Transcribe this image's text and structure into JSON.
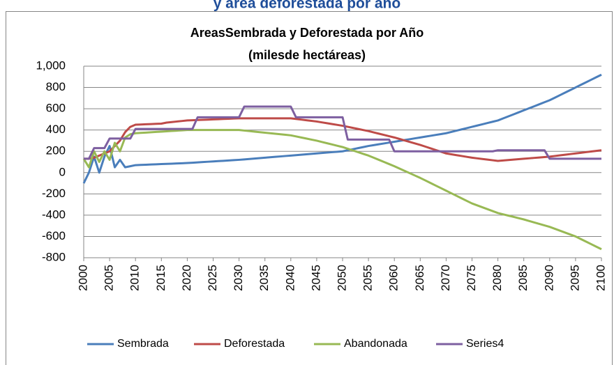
{
  "header": {
    "title": "y área deforestada por año"
  },
  "chart_data": {
    "type": "line",
    "title": "AreasSembrada y Deforestada por Año",
    "subtitle": "(milesde hectáreas)",
    "x": [
      2000,
      2001,
      2002,
      2003,
      2004,
      2005,
      2006,
      2007,
      2008,
      2009,
      2010,
      2011,
      2012,
      2013,
      2014,
      2015,
      2016,
      2017,
      2018,
      2019,
      2020,
      2021,
      2022,
      2023,
      2024,
      2025,
      2026,
      2027,
      2028,
      2029,
      2030,
      2031,
      2032,
      2033,
      2034,
      2035,
      2036,
      2037,
      2038,
      2039,
      2040,
      2041,
      2042,
      2043,
      2044,
      2045,
      2046,
      2047,
      2048,
      2049,
      2050,
      2051,
      2052,
      2053,
      2054,
      2055,
      2056,
      2057,
      2058,
      2059,
      2060,
      2061,
      2062,
      2063,
      2064,
      2065,
      2066,
      2067,
      2068,
      2069,
      2070,
      2071,
      2072,
      2073,
      2074,
      2075,
      2076,
      2077,
      2078,
      2079,
      2080,
      2081,
      2082,
      2083,
      2084,
      2085,
      2086,
      2087,
      2088,
      2089,
      2090,
      2091,
      2092,
      2093,
      2094,
      2095,
      2096,
      2097,
      2098,
      2099,
      2100
    ],
    "xlim": [
      2000,
      2100
    ],
    "xticks": [
      2000,
      2005,
      2010,
      2015,
      2020,
      2025,
      2030,
      2035,
      2040,
      2045,
      2050,
      2055,
      2060,
      2065,
      2070,
      2075,
      2080,
      2085,
      2090,
      2095,
      2100
    ],
    "ylim": [
      -800,
      1000
    ],
    "yticks": [
      -800,
      -600,
      -400,
      -200,
      0,
      200,
      400,
      600,
      800,
      {
        "value": 1000,
        "label": "1,000"
      }
    ],
    "grid": true,
    "legend": "bottom",
    "series": [
      {
        "name": "Sembrada",
        "color": "#4a7ebb",
        "values": [
          -100,
          0,
          150,
          0,
          150,
          250,
          50,
          120,
          50,
          60,
          70,
          72,
          74,
          76,
          78,
          80,
          82,
          84,
          86,
          88,
          90,
          93,
          96,
          99,
          102,
          105,
          108,
          111,
          114,
          117,
          120,
          124,
          128,
          132,
          136,
          140,
          144,
          148,
          152,
          156,
          160,
          164,
          168,
          172,
          176,
          180,
          184,
          188,
          192,
          196,
          200,
          210,
          220,
          230,
          240,
          250,
          258,
          266,
          274,
          282,
          290,
          298,
          306,
          314,
          322,
          330,
          338,
          346,
          354,
          362,
          370,
          382,
          394,
          406,
          418,
          430,
          442,
          454,
          466,
          478,
          490,
          509,
          528,
          547,
          566,
          585,
          604,
          623,
          642,
          661,
          680,
          704,
          728,
          752,
          776,
          800,
          824,
          848,
          872,
          896,
          920
        ]
      },
      {
        "name": "Deforestada",
        "color": "#be4b48",
        "values": [
          130,
          130,
          140,
          160,
          180,
          200,
          250,
          300,
          380,
          430,
          450,
          452,
          454,
          456,
          458,
          460,
          470,
          475,
          480,
          485,
          490,
          492,
          494,
          496,
          498,
          500,
          502,
          504,
          506,
          508,
          510,
          510,
          510,
          510,
          510,
          510,
          510,
          510,
          510,
          510,
          510,
          504,
          498,
          492,
          486,
          480,
          472,
          464,
          456,
          448,
          440,
          430,
          420,
          410,
          400,
          390,
          378,
          366,
          354,
          342,
          330,
          316,
          302,
          288,
          274,
          260,
          244,
          228,
          212,
          196,
          180,
          172,
          164,
          156,
          148,
          140,
          134,
          128,
          122,
          116,
          110,
          114,
          118,
          122,
          126,
          130,
          134,
          138,
          142,
          146,
          150,
          156,
          162,
          168,
          174,
          180,
          186,
          192,
          198,
          204,
          210
        ]
      },
      {
        "name": "Abandonada",
        "color": "#98b954",
        "values": [
          130,
          50,
          200,
          100,
          200,
          120,
          280,
          200,
          330,
          360,
          370,
          373,
          376,
          379,
          382,
          385,
          388,
          391,
          394,
          397,
          400,
          400,
          400,
          400,
          400,
          400,
          400,
          400,
          400,
          400,
          400,
          395,
          390,
          385,
          380,
          375,
          370,
          365,
          360,
          355,
          350,
          340,
          330,
          320,
          310,
          300,
          288,
          276,
          264,
          252,
          240,
          224,
          208,
          192,
          176,
          160,
          140,
          120,
          100,
          80,
          60,
          38,
          16,
          -6,
          -28,
          -50,
          -74,
          -98,
          -122,
          -146,
          -170,
          -194,
          -218,
          -242,
          -266,
          -290,
          -308,
          -326,
          -344,
          -362,
          -380,
          -392,
          -404,
          -416,
          -428,
          -440,
          -454,
          -468,
          -482,
          -496,
          -510,
          -528,
          -546,
          -564,
          -582,
          -600,
          -624,
          -648,
          -672,
          -696,
          -720
        ]
      },
      {
        "name": "Series4",
        "color": "#7d5fa0",
        "values": [
          130,
          130,
          230,
          230,
          230,
          320,
          320,
          320,
          320,
          320,
          410,
          410,
          410,
          410,
          410,
          410,
          410,
          410,
          410,
          410,
          410,
          410,
          520,
          520,
          520,
          520,
          520,
          520,
          520,
          520,
          520,
          620,
          620,
          620,
          620,
          620,
          620,
          620,
          620,
          620,
          620,
          520,
          520,
          520,
          520,
          520,
          520,
          520,
          520,
          520,
          520,
          310,
          310,
          310,
          310,
          310,
          310,
          310,
          310,
          310,
          200,
          200,
          200,
          200,
          200,
          200,
          200,
          200,
          200,
          200,
          200,
          200,
          200,
          200,
          200,
          200,
          200,
          200,
          200,
          200,
          210,
          210,
          210,
          210,
          210,
          210,
          210,
          210,
          210,
          210,
          130,
          130,
          130,
          130,
          130,
          130,
          130,
          130,
          130,
          130,
          130
        ]
      }
    ]
  }
}
